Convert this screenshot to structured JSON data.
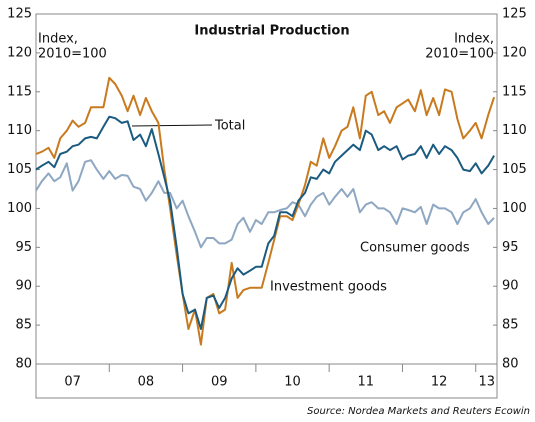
{
  "chart_data": {
    "type": "line",
    "title": "Industrial Production",
    "ylabel": [
      "Index,",
      "2010=100"
    ],
    "y2label": [
      "Index,",
      "2010=100"
    ],
    "source": "Source: Nordea Markets and Reuters Ecowin",
    "x": [
      2007.0,
      2007.08,
      2007.17,
      2007.25,
      2007.33,
      2007.42,
      2007.5,
      2007.58,
      2007.67,
      2007.75,
      2007.83,
      2007.92,
      2008.0,
      2008.08,
      2008.17,
      2008.25,
      2008.33,
      2008.42,
      2008.5,
      2008.58,
      2008.67,
      2008.75,
      2008.83,
      2008.92,
      2009.0,
      2009.08,
      2009.17,
      2009.25,
      2009.33,
      2009.42,
      2009.5,
      2009.58,
      2009.67,
      2009.75,
      2009.83,
      2009.92,
      2010.0,
      2010.08,
      2010.17,
      2010.25,
      2010.33,
      2010.42,
      2010.5,
      2010.58,
      2010.67,
      2010.75,
      2010.83,
      2010.92,
      2011.0,
      2011.08,
      2011.17,
      2011.25,
      2011.33,
      2011.42,
      2011.5,
      2011.58,
      2011.67,
      2011.75,
      2011.83,
      2011.92,
      2012.0,
      2012.08,
      2012.17,
      2012.25,
      2012.33,
      2012.42,
      2012.5,
      2012.58,
      2012.67,
      2012.75,
      2012.83,
      2012.92,
      2013.0,
      2013.08,
      2013.17,
      2013.25
    ],
    "xlim": [
      2007.0,
      2013.29
    ],
    "xticks": [
      {
        "value": 2007.5,
        "label": "07"
      },
      {
        "value": 2008.5,
        "label": "08"
      },
      {
        "value": 2009.5,
        "label": "09"
      },
      {
        "value": 2010.5,
        "label": "10"
      },
      {
        "value": 2011.5,
        "label": "11"
      },
      {
        "value": 2012.5,
        "label": "12"
      },
      {
        "value": 2013.15,
        "label": "13"
      }
    ],
    "xminor": [
      2008,
      2009,
      2010,
      2011,
      2012,
      2013
    ],
    "ylim": [
      80,
      125
    ],
    "yticks": [
      80,
      85,
      90,
      95,
      100,
      105,
      110,
      115,
      120,
      125
    ],
    "y2lim": [
      80,
      125
    ],
    "y2ticks": [
      80,
      85,
      90,
      95,
      100,
      105,
      110,
      115,
      120,
      125
    ],
    "series": [
      {
        "name": "Total",
        "color": "#1b5b80",
        "values": [
          105.0,
          105.5,
          106.0,
          105.3,
          107.0,
          107.3,
          108.0,
          108.2,
          109.0,
          109.2,
          109.0,
          110.5,
          111.8,
          111.6,
          111.0,
          111.2,
          108.8,
          109.5,
          108.0,
          110.2,
          107.0,
          104.0,
          101.0,
          95.0,
          89.0,
          86.5,
          87.0,
          84.5,
          88.5,
          88.8,
          87.2,
          88.5,
          91.0,
          92.3,
          91.5,
          92.0,
          92.5,
          92.5,
          95.5,
          96.5,
          99.5,
          99.5,
          99.0,
          101.0,
          102.0,
          104.0,
          103.8,
          105.0,
          104.5,
          106.0,
          106.8,
          107.5,
          108.2,
          107.5,
          110.0,
          109.5,
          107.5,
          108.0,
          107.5,
          108.0,
          106.3,
          106.8,
          107.0,
          108.0,
          106.5,
          108.2,
          107.0,
          108.0,
          107.5,
          106.5,
          105.0,
          104.8,
          105.8,
          104.5,
          105.5,
          106.8
        ]
      },
      {
        "name": "Investment goods",
        "color": "#c97a1e",
        "values": [
          107.0,
          107.3,
          107.8,
          106.5,
          109.0,
          110.0,
          111.3,
          110.5,
          111.0,
          113.0,
          113.0,
          113.0,
          116.8,
          116.0,
          114.5,
          112.5,
          114.5,
          112.0,
          114.2,
          112.5,
          111.0,
          105.0,
          100.0,
          94.0,
          89.0,
          84.5,
          87.0,
          82.5,
          88.5,
          89.0,
          86.5,
          87.0,
          93.0,
          88.5,
          89.5,
          89.8,
          89.8,
          89.8,
          93.0,
          96.0,
          99.0,
          99.0,
          98.5,
          100.5,
          103.0,
          106.0,
          105.5,
          109.0,
          106.5,
          108.0,
          110.0,
          110.5,
          113.0,
          109.0,
          114.5,
          115.0,
          112.0,
          112.5,
          111.0,
          113.0,
          113.5,
          114.0,
          112.5,
          115.2,
          112.0,
          114.2,
          112.0,
          115.3,
          115.0,
          111.5,
          109.0,
          110.0,
          111.0,
          109.0,
          112.0,
          114.3
        ]
      },
      {
        "name": "Consumer goods",
        "color": "#8ea7c3",
        "values": [
          102.3,
          103.5,
          104.5,
          103.5,
          104.0,
          105.8,
          102.3,
          103.5,
          106.0,
          106.2,
          105.0,
          103.8,
          104.8,
          103.8,
          104.3,
          104.2,
          102.8,
          102.5,
          101.0,
          102.0,
          103.5,
          102.0,
          102.0,
          100.0,
          101.0,
          99.0,
          97.0,
          95.0,
          96.2,
          96.2,
          95.5,
          95.5,
          96.0,
          98.0,
          98.8,
          97.0,
          98.5,
          98.0,
          99.5,
          99.5,
          99.8,
          100.0,
          100.8,
          100.5,
          99.0,
          100.5,
          101.5,
          102.0,
          100.5,
          101.5,
          102.5,
          101.5,
          102.5,
          99.5,
          100.5,
          100.8,
          100.0,
          100.0,
          99.5,
          98.0,
          100.0,
          99.8,
          99.5,
          100.2,
          98.0,
          100.5,
          100.0,
          100.0,
          99.5,
          98.0,
          99.5,
          100.0,
          101.2,
          99.5,
          98.0,
          98.8
        ]
      }
    ]
  }
}
